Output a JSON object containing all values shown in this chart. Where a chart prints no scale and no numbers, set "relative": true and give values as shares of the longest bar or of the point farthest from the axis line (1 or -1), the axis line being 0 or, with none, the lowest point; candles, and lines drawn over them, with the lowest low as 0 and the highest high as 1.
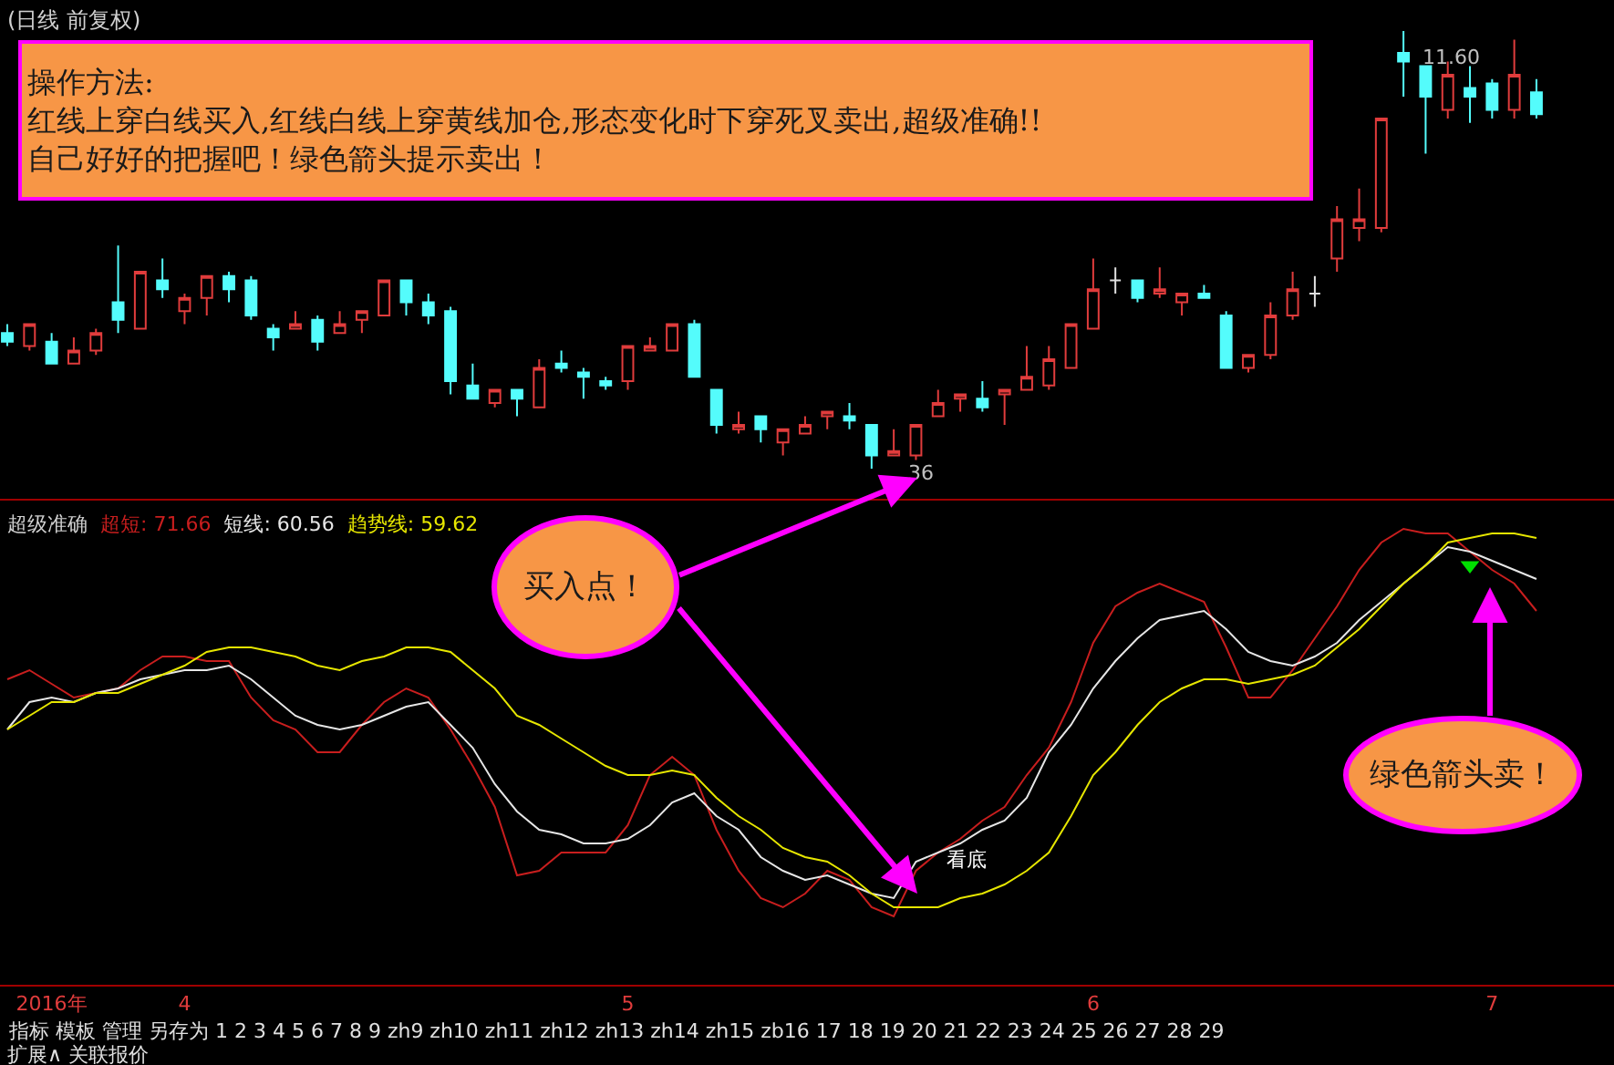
{
  "chart_data": [
    {
      "type": "candlestick",
      "title": "(日线 前复权)",
      "relative": true,
      "tick_labels": false,
      "ohlc": [
        [
          0.31,
          0.33,
          0.28,
          0.29
        ],
        [
          0.28,
          0.33,
          0.27,
          0.33
        ],
        [
          0.29,
          0.31,
          0.24,
          0.24
        ],
        [
          0.24,
          0.3,
          0.24,
          0.27
        ],
        [
          0.27,
          0.32,
          0.26,
          0.31
        ],
        [
          0.38,
          0.51,
          0.31,
          0.34
        ],
        [
          0.32,
          0.45,
          0.32,
          0.45
        ],
        [
          0.43,
          0.48,
          0.39,
          0.41
        ],
        [
          0.36,
          0.4,
          0.33,
          0.39
        ],
        [
          0.39,
          0.44,
          0.35,
          0.44
        ],
        [
          0.44,
          0.45,
          0.38,
          0.41
        ],
        [
          0.43,
          0.44,
          0.34,
          0.35
        ],
        [
          0.32,
          0.33,
          0.27,
          0.3
        ],
        [
          0.32,
          0.36,
          0.32,
          0.33
        ],
        [
          0.34,
          0.35,
          0.27,
          0.29
        ],
        [
          0.31,
          0.36,
          0.31,
          0.33
        ],
        [
          0.34,
          0.36,
          0.31,
          0.36
        ],
        [
          0.35,
          0.43,
          0.35,
          0.43
        ],
        [
          0.43,
          0.43,
          0.35,
          0.38
        ],
        [
          0.38,
          0.4,
          0.33,
          0.35
        ],
        [
          0.36,
          0.37,
          0.17,
          0.2
        ],
        [
          0.19,
          0.24,
          0.16,
          0.16
        ],
        [
          0.15,
          0.18,
          0.14,
          0.18
        ],
        [
          0.18,
          0.18,
          0.12,
          0.16
        ],
        [
          0.14,
          0.25,
          0.14,
          0.23
        ],
        [
          0.24,
          0.27,
          0.22,
          0.23
        ],
        [
          0.22,
          0.23,
          0.16,
          0.21
        ],
        [
          0.2,
          0.21,
          0.18,
          0.19
        ],
        [
          0.2,
          0.28,
          0.18,
          0.28
        ],
        [
          0.27,
          0.3,
          0.27,
          0.28
        ],
        [
          0.27,
          0.33,
          0.27,
          0.33
        ],
        [
          0.33,
          0.34,
          0.21,
          0.21
        ],
        [
          0.18,
          0.18,
          0.08,
          0.1
        ],
        [
          0.09,
          0.13,
          0.08,
          0.1
        ],
        [
          0.12,
          0.12,
          0.06,
          0.09
        ],
        [
          0.06,
          0.09,
          0.03,
          0.09
        ],
        [
          0.08,
          0.12,
          0.08,
          0.1
        ],
        [
          0.12,
          0.13,
          0.09,
          0.13
        ],
        [
          0.12,
          0.15,
          0.09,
          0.11
        ],
        [
          0.1,
          0.1,
          0,
          0.03
        ],
        [
          0.03,
          0.09,
          0.03,
          0.04
        ],
        [
          0.03,
          0.1,
          0.02,
          0.1
        ],
        [
          0.12,
          0.18,
          0.12,
          0.15
        ],
        [
          0.16,
          0.17,
          0.13,
          0.17
        ],
        [
          0.16,
          0.2,
          0.13,
          0.14
        ],
        [
          0.17,
          0.18,
          0.1,
          0.18
        ],
        [
          0.18,
          0.28,
          0.18,
          0.21
        ],
        [
          0.19,
          0.28,
          0.18,
          0.25
        ],
        [
          0.23,
          0.33,
          0.23,
          0.33
        ],
        [
          0.32,
          0.48,
          0.32,
          0.41
        ],
        [
          0.43,
          0.46,
          0.4,
          0.43
        ],
        [
          0.43,
          0.43,
          0.38,
          0.39
        ],
        [
          0.4,
          0.46,
          0.39,
          0.41
        ],
        [
          0.38,
          0.4,
          0.35,
          0.4
        ],
        [
          0.4,
          0.42,
          0.39,
          0.39
        ],
        [
          0.35,
          0.36,
          0.23,
          0.23
        ],
        [
          0.23,
          0.26,
          0.22,
          0.26
        ],
        [
          0.26,
          0.38,
          0.25,
          0.35
        ],
        [
          0.35,
          0.45,
          0.34,
          0.41
        ],
        [
          0.4,
          0.44,
          0.37,
          0.4
        ],
        [
          0.48,
          0.6,
          0.45,
          0.57
        ],
        [
          0.55,
          0.64,
          0.52,
          0.57
        ],
        [
          0.55,
          0.8,
          0.54,
          0.8
        ],
        [
          0.95,
          1,
          0.85,
          0.93
        ],
        [
          0.92,
          0.92,
          0.72,
          0.85
        ],
        [
          0.82,
          0.93,
          0.8,
          0.9
        ],
        [
          0.87,
          0.92,
          0.79,
          0.85
        ],
        [
          0.88,
          0.89,
          0.8,
          0.82
        ],
        [
          0.82,
          0.98,
          0.8,
          0.9
        ],
        [
          0.86,
          0.89,
          0.8,
          0.81
        ]
      ],
      "colors": [
        "#54fcfc",
        "#e03c3c",
        "#54fcfc",
        "#e03c3c",
        "#e03c3c",
        "#54fcfc",
        "#e03c3c",
        "#54fcfc",
        "#e03c3c",
        "#e03c3c",
        "#54fcfc",
        "#54fcfc",
        "#54fcfc",
        "#e03c3c",
        "#54fcfc",
        "#e03c3c",
        "#e03c3c",
        "#e03c3c",
        "#54fcfc",
        "#54fcfc",
        "#54fcfc",
        "#54fcfc",
        "#e03c3c",
        "#54fcfc",
        "#e03c3c",
        "#54fcfc",
        "#54fcfc",
        "#54fcfc",
        "#e03c3c",
        "#e03c3c",
        "#e03c3c",
        "#54fcfc",
        "#54fcfc",
        "#e03c3c",
        "#54fcfc",
        "#e03c3c",
        "#e03c3c",
        "#e03c3c",
        "#54fcfc",
        "#54fcfc",
        "#e03c3c",
        "#e03c3c",
        "#e03c3c",
        "#e03c3c",
        "#54fcfc",
        "#e03c3c",
        "#e03c3c",
        "#e03c3c",
        "#e03c3c",
        "#e03c3c",
        "#e0e0e0",
        "#54fcfc",
        "#e03c3c",
        "#e03c3c",
        "#54fcfc",
        "#54fcfc",
        "#e03c3c",
        "#e03c3c",
        "#e03c3c",
        "#e0e0e0",
        "#e03c3c",
        "#e03c3c",
        "#e03c3c",
        "#54fcfc",
        "#54fcfc",
        "#e03c3c",
        "#54fcfc",
        "#54fcfc",
        "#e03c3c",
        "#54fcfc"
      ],
      "annotations": [
        "操作方法:\n红线上穿白线买入,红线白线上穿黄线加仓,形态变化时下穿死叉卖出,超级准确!!\n自己好好的把握吧！绿色箭头提示卖出！",
        "11.60",
        "36"
      ]
    },
    {
      "type": "line",
      "title": "超级准确",
      "relative": true,
      "tick_labels": "x",
      "line_style": "solid",
      "categories": [
        null,
        null,
        "2016年",
        null,
        null,
        null,
        null,
        null,
        "4",
        null,
        null,
        null,
        null,
        null,
        null,
        null,
        null,
        null,
        null,
        null,
        null,
        null,
        null,
        null,
        null,
        null,
        null,
        null,
        "5",
        null,
        null,
        null,
        null,
        null,
        null,
        null,
        null,
        null,
        null,
        null,
        null,
        null,
        null,
        null,
        null,
        null,
        null,
        null,
        null,
        "6",
        null,
        null,
        null,
        null,
        null,
        null,
        null,
        null,
        null,
        null,
        null,
        null,
        null,
        null,
        null,
        null,
        null,
        "7",
        null,
        null
      ],
      "series": [
        {
          "name": "超短: 71.66",
          "color": "#c81e1e",
          "values": [
            0.67,
            0.69,
            0.66,
            0.63,
            0.64,
            0.65,
            0.69,
            0.72,
            0.72,
            0.71,
            0.71,
            0.63,
            0.58,
            0.56,
            0.51,
            0.51,
            0.57,
            0.62,
            0.65,
            0.63,
            0.56,
            0.48,
            0.39,
            0.24,
            0.25,
            0.29,
            0.29,
            0.29,
            0.35,
            0.46,
            0.5,
            0.46,
            0.34,
            0.25,
            0.19,
            0.17,
            0.2,
            0.25,
            0.23,
            0.17,
            0.15,
            0.25,
            0.29,
            0.32,
            0.36,
            0.39,
            0.46,
            0.52,
            0.62,
            0.75,
            0.83,
            0.86,
            0.88,
            0.86,
            0.84,
            0.74,
            0.63,
            0.63,
            0.69,
            0.76,
            0.83,
            0.91,
            0.97,
            1,
            0.99,
            0.99,
            0.95,
            0.91,
            0.88,
            0.82
          ]
        },
        {
          "name": "短线: 60.56",
          "color": "#e6e6e6",
          "values": [
            0.56,
            0.62,
            0.63,
            0.62,
            0.64,
            0.65,
            0.67,
            0.68,
            0.69,
            0.69,
            0.7,
            0.67,
            0.63,
            0.59,
            0.57,
            0.56,
            0.57,
            0.59,
            0.61,
            0.62,
            0.57,
            0.52,
            0.44,
            0.38,
            0.34,
            0.33,
            0.31,
            0.31,
            0.32,
            0.35,
            0.4,
            0.42,
            0.37,
            0.34,
            0.28,
            0.25,
            0.23,
            0.24,
            0.22,
            0.2,
            0.19,
            0.27,
            0.29,
            0.31,
            0.34,
            0.36,
            0.41,
            0.51,
            0.57,
            0.65,
            0.71,
            0.76,
            0.8,
            0.81,
            0.82,
            0.78,
            0.73,
            0.71,
            0.7,
            0.72,
            0.75,
            0.8,
            0.84,
            0.88,
            0.92,
            0.96,
            0.95,
            0.93,
            0.91,
            0.89
          ]
        },
        {
          "name": "趋势线: 59.62",
          "color": "#e6e600",
          "values": [
            0.56,
            0.59,
            0.62,
            0.62,
            0.64,
            0.64,
            0.66,
            0.68,
            0.7,
            0.73,
            0.74,
            0.74,
            0.73,
            0.72,
            0.7,
            0.69,
            0.71,
            0.72,
            0.74,
            0.74,
            0.73,
            0.69,
            0.65,
            0.59,
            0.57,
            0.54,
            0.51,
            0.48,
            0.46,
            0.46,
            0.47,
            0.46,
            0.41,
            0.37,
            0.34,
            0.3,
            0.28,
            0.27,
            0.24,
            0.2,
            0.17,
            0.17,
            0.17,
            0.19,
            0.2,
            0.22,
            0.25,
            0.29,
            0.37,
            0.46,
            0.51,
            0.57,
            0.62,
            0.65,
            0.67,
            0.67,
            0.66,
            0.67,
            0.68,
            0.7,
            0.74,
            0.78,
            0.83,
            0.88,
            0.92,
            0.97,
            0.98,
            0.99,
            0.99,
            0.98
          ]
        },
        {
          "type": "scatter",
          "color": "#00e000",
          "marker": "triangle",
          "values": [
            null,
            null,
            null,
            null,
            null,
            null,
            null,
            null,
            null,
            null,
            null,
            null,
            null,
            null,
            null,
            null,
            null,
            null,
            null,
            null,
            null,
            null,
            null,
            null,
            null,
            null,
            null,
            null,
            null,
            null,
            null,
            null,
            null,
            null,
            null,
            null,
            null,
            null,
            null,
            null,
            null,
            null,
            null,
            null,
            null,
            null,
            null,
            null,
            null,
            null,
            null,
            null,
            null,
            null,
            null,
            null,
            null,
            null,
            null,
            null,
            null,
            null,
            null,
            null,
            null,
            null,
            0.92,
            null,
            null,
            null
          ]
        }
      ],
      "annotations": [
        "买入点！",
        "绿色箭头卖！",
        "看底",
        "指标 模板 管理 另存为 1 2 3 4 5 6 7 8 9 zh9 zh10 zh11 zh12 zh13 zh14 zh15 zb16 17 18 19 20 21 22 23 24 25 26 27 28 29",
        "扩展∧ 关联报价"
      ]
    }
  ]
}
